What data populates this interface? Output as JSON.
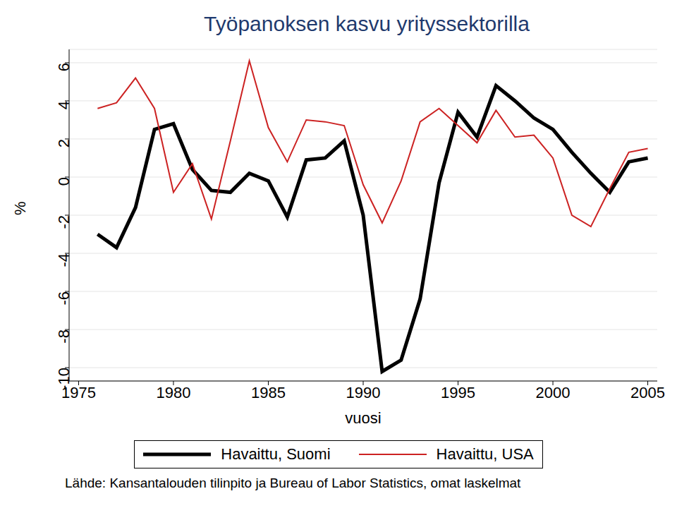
{
  "chart_data": {
    "type": "line",
    "title": "Työpanoksen kasvu yrityssektorilla",
    "x_label": "vuosi",
    "y_label": "%",
    "source": "Lähde: Kansantalouden tilinpito ja Bureau of Labor Statistics, omat laskelmat",
    "x": [
      1976,
      1977,
      1978,
      1979,
      1980,
      1981,
      1982,
      1983,
      1984,
      1985,
      1986,
      1987,
      1988,
      1989,
      1990,
      1991,
      1992,
      1993,
      1994,
      1995,
      1996,
      1997,
      1998,
      1999,
      2000,
      2001,
      2002,
      2003,
      2004,
      2005
    ],
    "series": [
      {
        "name": "Havaittu, Suomi",
        "color": "#000000",
        "values": [
          -3.0,
          -3.7,
          -1.6,
          2.5,
          2.8,
          0.4,
          -0.7,
          -0.8,
          0.2,
          -0.2,
          -2.1,
          0.9,
          1.0,
          1.9,
          -2.0,
          -10.2,
          -9.6,
          -6.4,
          -0.3,
          3.4,
          2.1,
          4.8,
          4.0,
          3.1,
          2.5,
          1.3,
          0.2,
          -0.8,
          0.8,
          1.0
        ]
      },
      {
        "name": "Havaittu, USA",
        "color": "#cc2222",
        "values": [
          3.6,
          3.9,
          5.2,
          3.6,
          -0.8,
          0.7,
          -2.2,
          1.9,
          6.1,
          2.6,
          0.8,
          3.0,
          2.9,
          2.7,
          -0.4,
          -2.4,
          -0.2,
          2.9,
          3.6,
          2.7,
          1.8,
          3.5,
          2.1,
          2.2,
          1.0,
          -2.0,
          -2.6,
          -0.6,
          1.3,
          1.5
        ]
      }
    ],
    "xlim": [
      1974.5,
      2005.5
    ],
    "xticks": [
      1975,
      1980,
      1985,
      1990,
      1995,
      2000,
      2005
    ],
    "ylim": [
      -10.7,
      6.7
    ],
    "yticks": [
      -10,
      -8,
      -6,
      -4,
      -2,
      0,
      2,
      4,
      6
    ],
    "grid": true,
    "legend": "bottom"
  }
}
